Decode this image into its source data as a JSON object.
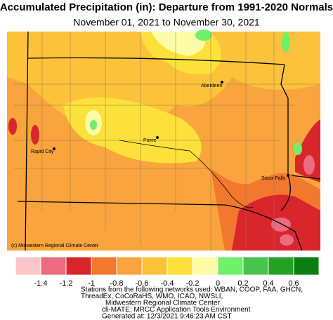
{
  "header": {
    "title": "Accumulated Precipitation (in): Departure from 1991-2020 Normals",
    "subtitle": "November 01, 2021 to November 30, 2021"
  },
  "map": {
    "cities": [
      "Aberdeen",
      "Pierre",
      "Rapid City",
      "Sioux Falls"
    ],
    "credit": "(c) Midwestern Regional Climate Center"
  },
  "legend": {
    "colors": [
      "#fcc5c8",
      "#ec6b80",
      "#d8262c",
      "#f2782e",
      "#f9a43c",
      "#fcc23a",
      "#fde13a",
      "#fefca6",
      "#6df06a",
      "#49c44a",
      "#24a125",
      "#0a7e0f"
    ],
    "labels": [
      "-1.4",
      "-1.2",
      "-1",
      "-0.8",
      "-0.6",
      "-0.4",
      "-0.2",
      "0",
      "0.2",
      "0.4",
      "0.6"
    ]
  },
  "footer": [
    "Stations from the following networks used: WBAN, COOP, FAA, GHCN,",
    "ThreadEx, CoCoRaHS, WMO, ICAO, NWSLI,",
    "Midwestern Regional Climate Center",
    "cli-MATE: MRCC Application Tools Environment",
    "Generated at: 12/3/2021 9:46:23 AM CST"
  ]
}
